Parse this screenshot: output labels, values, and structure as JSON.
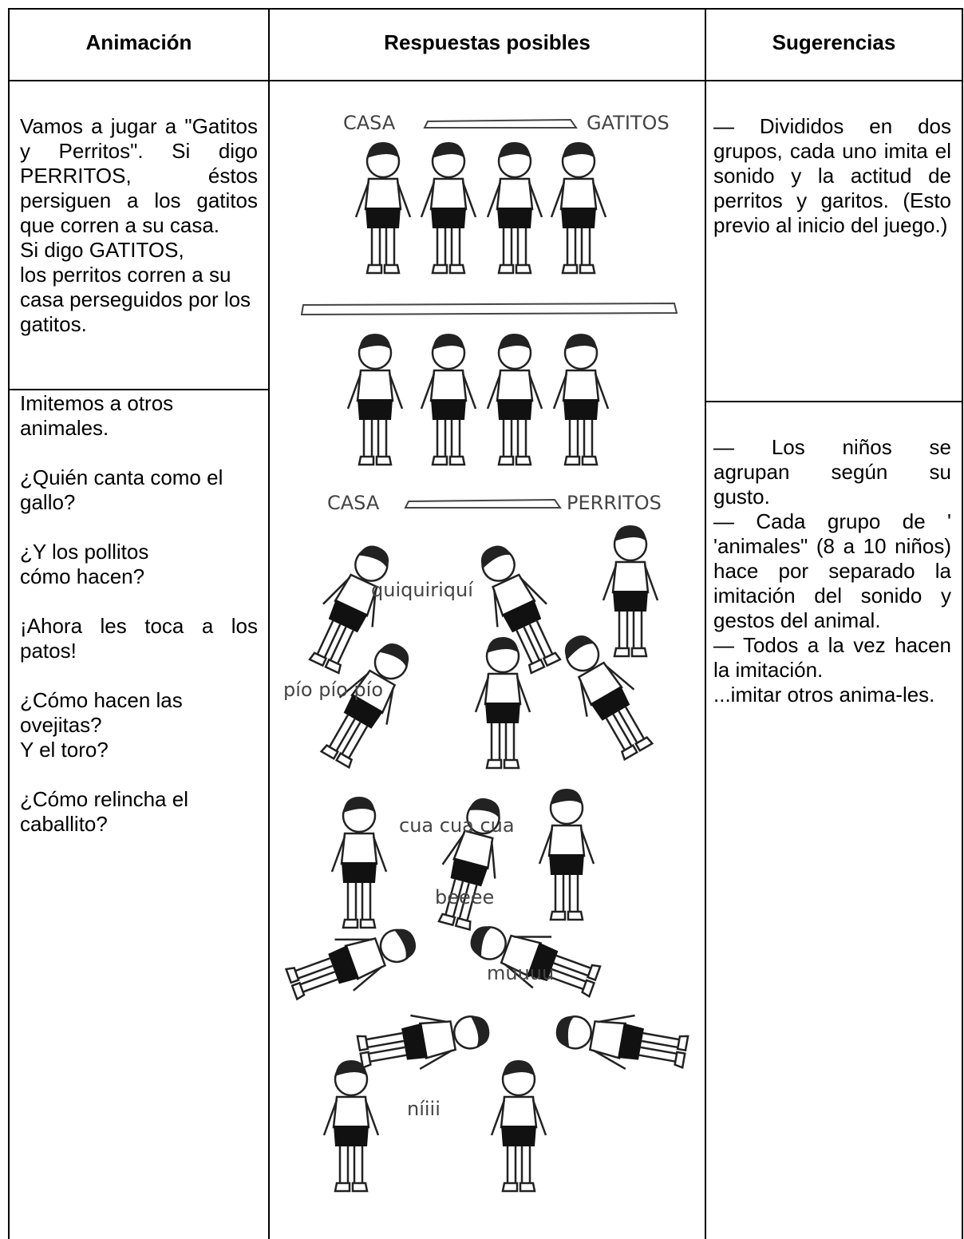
{
  "table": {
    "headers": [
      "Animación",
      "Respuestas posibles",
      "Sugerencias"
    ],
    "animacion": [
      [
        "Vamos a jugar a \"Gatitos y Perritos\". Si digo PERRITOS, éstos persiguen a los gatitos que corren a su casa.",
        "Si digo GATITOS,",
        "los perritos corren a su casa perseguidos por los gatitos."
      ],
      [
        "Imitemos a otros animales.",
        "¿Quién canta como el gallo?",
        "¿Y  los pollitos cómo hacen?",
        "¡Ahora les  toca  a los patos!",
        "¿Cómo hacen las ovejitas?",
        "Y el toro?",
        "¿Cómo relincha el caballito?"
      ]
    ],
    "respuestas": {
      "casa_1": "CASA",
      "gatitos": "GATITOS",
      "casa_2": "CASA",
      "perritos": "PERRITOS",
      "sounds": [
        "quiquiriquí",
        "pío pío pío",
        "cua cua cua",
        "beeee",
        "muuuu",
        "níiii"
      ]
    },
    "sugerencias": [
      [
        "— Divididos en dos grupos, cada uno imita el sonido y la actitud de perritos y garitos. (Esto previo al inicio del juego.)"
      ],
      [
        "— Los niños se agrupan según su gusto.",
        "— Cada grupo de ' 'animales\" (8 a 10 niños) hace por separado la imitación del sonido y gestos del animal.",
        "— Todos a la vez hacen la imitación.",
        "...imitar otros anima-les."
      ]
    ]
  }
}
